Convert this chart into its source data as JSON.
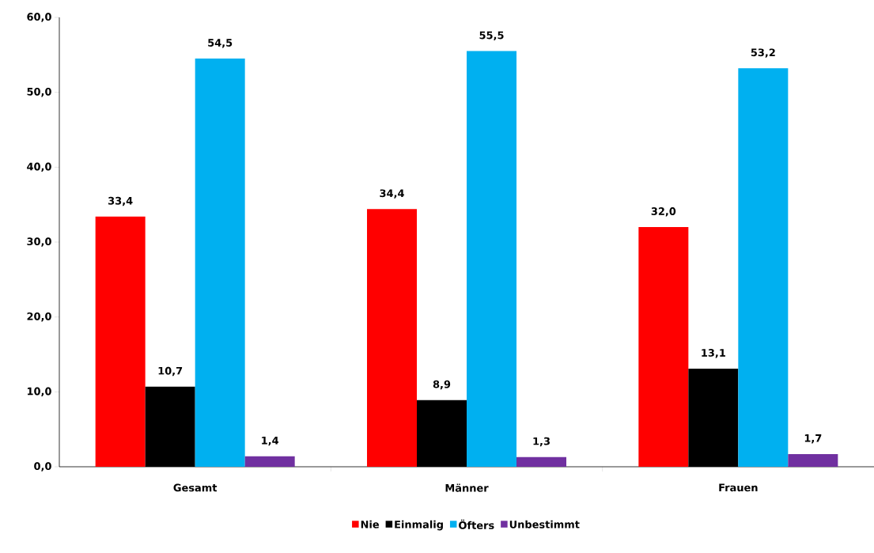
{
  "chart_data": {
    "type": "bar",
    "categories": [
      "Gesamt",
      "Männer",
      "Frauen"
    ],
    "series": [
      {
        "name": "Nie",
        "color": "#ff0000",
        "values": [
          33.4,
          34.4,
          32.0
        ],
        "value_labels": [
          "33,4",
          "34,4",
          "32,0"
        ]
      },
      {
        "name": "Einmalig",
        "color": "#000000",
        "values": [
          10.7,
          8.9,
          13.1
        ],
        "value_labels": [
          "10,7",
          "8,9",
          "13,1"
        ]
      },
      {
        "name": "Öfters",
        "color": "#00b0f0",
        "values": [
          54.5,
          55.5,
          53.2
        ],
        "value_labels": [
          "54,5",
          "55,5",
          "53,2"
        ]
      },
      {
        "name": "Unbestimmt",
        "color": "#7030a0",
        "values": [
          1.4,
          1.3,
          1.7
        ],
        "value_labels": [
          "1,4",
          "1,3",
          "1,7"
        ]
      }
    ],
    "ylim": [
      0,
      60
    ],
    "yticks": [
      {
        "value": 0,
        "label": "0,0"
      },
      {
        "value": 10,
        "label": "10,0"
      },
      {
        "value": 20,
        "label": "20,0"
      },
      {
        "value": 30,
        "label": "30,0"
      },
      {
        "value": 40,
        "label": "40,0"
      },
      {
        "value": 50,
        "label": "50,0"
      },
      {
        "value": 60,
        "label": "60,0"
      }
    ],
    "grid": false,
    "legend": "bottom"
  }
}
